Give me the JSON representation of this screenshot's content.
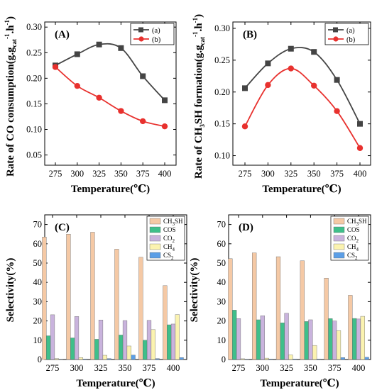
{
  "chart_data": [
    {
      "panel_label": "(A)",
      "type": "line",
      "x": [
        275,
        300,
        325,
        350,
        375,
        400
      ],
      "xlabel": "Temperature(℃)",
      "ylabel_parts": [
        "Rate of CO consumption(g.g",
        "cat",
        "-1",
        ".h",
        "-1",
        ")"
      ],
      "ylim": [
        0.03,
        0.31
      ],
      "yticks": [
        "0.05",
        "0.10",
        "0.15",
        "0.20",
        "0.25",
        "0.30"
      ],
      "xticks": [
        "275",
        "300",
        "325",
        "350",
        "375",
        "400"
      ],
      "legend_position": "top-right",
      "series": [
        {
          "name": "(a)",
          "marker": "square",
          "color": "#444444",
          "values": [
            0.225,
            0.247,
            0.266,
            0.259,
            0.204,
            0.157
          ]
        },
        {
          "name": "(b)",
          "marker": "circle",
          "color": "#e8312e",
          "values": [
            0.222,
            0.185,
            0.162,
            0.136,
            0.116,
            0.106
          ]
        }
      ]
    },
    {
      "panel_label": "(B)",
      "type": "line",
      "x": [
        275,
        300,
        325,
        350,
        375,
        400
      ],
      "xlabel": "Temperature(℃)",
      "ylabel_parts": [
        "Rate of CH",
        "3",
        "SH formation(g.g",
        "cat",
        "-1",
        ".h",
        "-1",
        ")"
      ],
      "ylim": [
        0.085,
        0.31
      ],
      "yticks": [
        "0.10",
        "0.15",
        "0.20",
        "0.25",
        "0.30"
      ],
      "xticks": [
        "275",
        "300",
        "325",
        "350",
        "375",
        "400"
      ],
      "legend_position": "top-right",
      "series": [
        {
          "name": "(a)",
          "marker": "square",
          "color": "#444444",
          "values": [
            0.206,
            0.245,
            0.268,
            0.263,
            0.219,
            0.15
          ]
        },
        {
          "name": "(b)",
          "marker": "circle",
          "color": "#e8312e",
          "values": [
            0.146,
            0.211,
            0.237,
            0.21,
            0.17,
            0.112
          ]
        }
      ]
    },
    {
      "panel_label": "(C)",
      "type": "bar",
      "categories": [
        "275",
        "300",
        "325",
        "350",
        "375",
        "400"
      ],
      "xlabel": "Temperature(℃)",
      "ylabel": "Selectivity(%)",
      "ylim": [
        0,
        75
      ],
      "yticks": [
        "0",
        "10",
        "20",
        "30",
        "40",
        "50",
        "60",
        "70"
      ],
      "legend_position": "top-right",
      "series": [
        {
          "name": "CH3SH",
          "color": "#f5c9a5",
          "values": [
            63.5,
            65.0,
            66.0,
            57.2,
            53.0,
            38.3
          ]
        },
        {
          "name": "COS",
          "color": "#3fbf8a",
          "values": [
            12.3,
            11.2,
            10.5,
            12.7,
            10.0,
            18.0
          ]
        },
        {
          "name": "CO2",
          "color": "#c9b3dd",
          "values": [
            23.2,
            22.3,
            20.5,
            20.2,
            20.3,
            18.4
          ]
        },
        {
          "name": "CH4",
          "color": "#fbf3b0",
          "values": [
            0.5,
            1.0,
            2.2,
            7.0,
            15.5,
            23.3
          ]
        },
        {
          "name": "CS2",
          "color": "#5b9ee6",
          "values": [
            0.2,
            0.3,
            0.5,
            2.3,
            0.5,
            1.0
          ]
        }
      ]
    },
    {
      "panel_label": "(D)",
      "type": "bar",
      "categories": [
        "275",
        "300",
        "325",
        "350",
        "375",
        "400"
      ],
      "xlabel": "Temperature(℃)",
      "ylabel": "Selectivity(%)",
      "ylim": [
        0,
        75
      ],
      "yticks": [
        "0",
        "10",
        "20",
        "30",
        "40",
        "50",
        "60",
        "70"
      ],
      "legend_position": "top-right",
      "series": [
        {
          "name": "CH3SH",
          "color": "#f5c9a5",
          "values": [
            52.3,
            55.3,
            53.3,
            51.2,
            42.2,
            33.3
          ]
        },
        {
          "name": "COS",
          "color": "#3fbf8a",
          "values": [
            25.6,
            20.6,
            19.0,
            19.7,
            21.2,
            21.3
          ]
        },
        {
          "name": "CO2",
          "color": "#c9b3dd",
          "values": [
            21.2,
            22.7,
            24.0,
            20.6,
            20.0,
            21.0
          ]
        },
        {
          "name": "CH4",
          "color": "#fbf3b0",
          "values": [
            0.4,
            0.7,
            2.4,
            7.3,
            15.0,
            22.4
          ]
        },
        {
          "name": "CS2",
          "color": "#5b9ee6",
          "values": [
            0.2,
            0.3,
            0.3,
            0.3,
            1.0,
            1.2
          ]
        }
      ]
    }
  ]
}
